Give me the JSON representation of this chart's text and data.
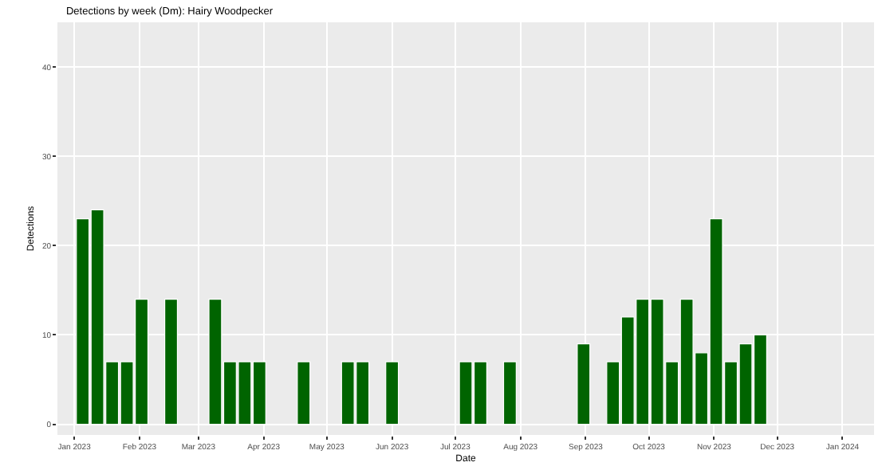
{
  "chart_data": {
    "type": "bar",
    "title": "Detections by week (Dm): Hairy Woodpecker",
    "xlabel": "Date",
    "ylabel": "Detections",
    "x": [
      "2023-01-05",
      "2023-01-12",
      "2023-01-19",
      "2023-01-26",
      "2023-02-02",
      "2023-02-16",
      "2023-03-09",
      "2023-03-16",
      "2023-03-23",
      "2023-03-30",
      "2023-04-20",
      "2023-05-11",
      "2023-05-18",
      "2023-06-01",
      "2023-07-06",
      "2023-07-13",
      "2023-07-27",
      "2023-08-31",
      "2023-09-14",
      "2023-09-21",
      "2023-09-28",
      "2023-10-05",
      "2023-10-12",
      "2023-10-19",
      "2023-10-26",
      "2023-11-02",
      "2023-11-09",
      "2023-11-16",
      "2023-11-23"
    ],
    "values": [
      23,
      24,
      7,
      7,
      14,
      14,
      14,
      7,
      7,
      7,
      7,
      7,
      7,
      7,
      7,
      7,
      7,
      9,
      7,
      12,
      14,
      14,
      7,
      14,
      8,
      23,
      7,
      9,
      10
    ],
    "color": "#006400",
    "xlim": [
      "2022-12-24",
      "2024-01-16"
    ],
    "xticks": [
      {
        "value": "2023-01-01",
        "label": "Jan 2023"
      },
      {
        "value": "2023-02-01",
        "label": "Feb 2023"
      },
      {
        "value": "2023-03-01",
        "label": "Mar 2023"
      },
      {
        "value": "2023-04-01",
        "label": "Apr 2023"
      },
      {
        "value": "2023-05-01",
        "label": "May 2023"
      },
      {
        "value": "2023-06-01",
        "label": "Jun 2023"
      },
      {
        "value": "2023-07-01",
        "label": "Jul 2023"
      },
      {
        "value": "2023-08-01",
        "label": "Aug 2023"
      },
      {
        "value": "2023-09-01",
        "label": "Sep 2023"
      },
      {
        "value": "2023-10-01",
        "label": "Oct 2023"
      },
      {
        "value": "2023-11-01",
        "label": "Nov 2023"
      },
      {
        "value": "2023-12-01",
        "label": "Dec 2023"
      },
      {
        "value": "2024-01-01",
        "label": "Jan 2024"
      }
    ],
    "ylim": [
      -1.2,
      45
    ],
    "yticks": [
      0,
      10,
      20,
      30,
      40
    ],
    "grid": true,
    "legend": false
  }
}
